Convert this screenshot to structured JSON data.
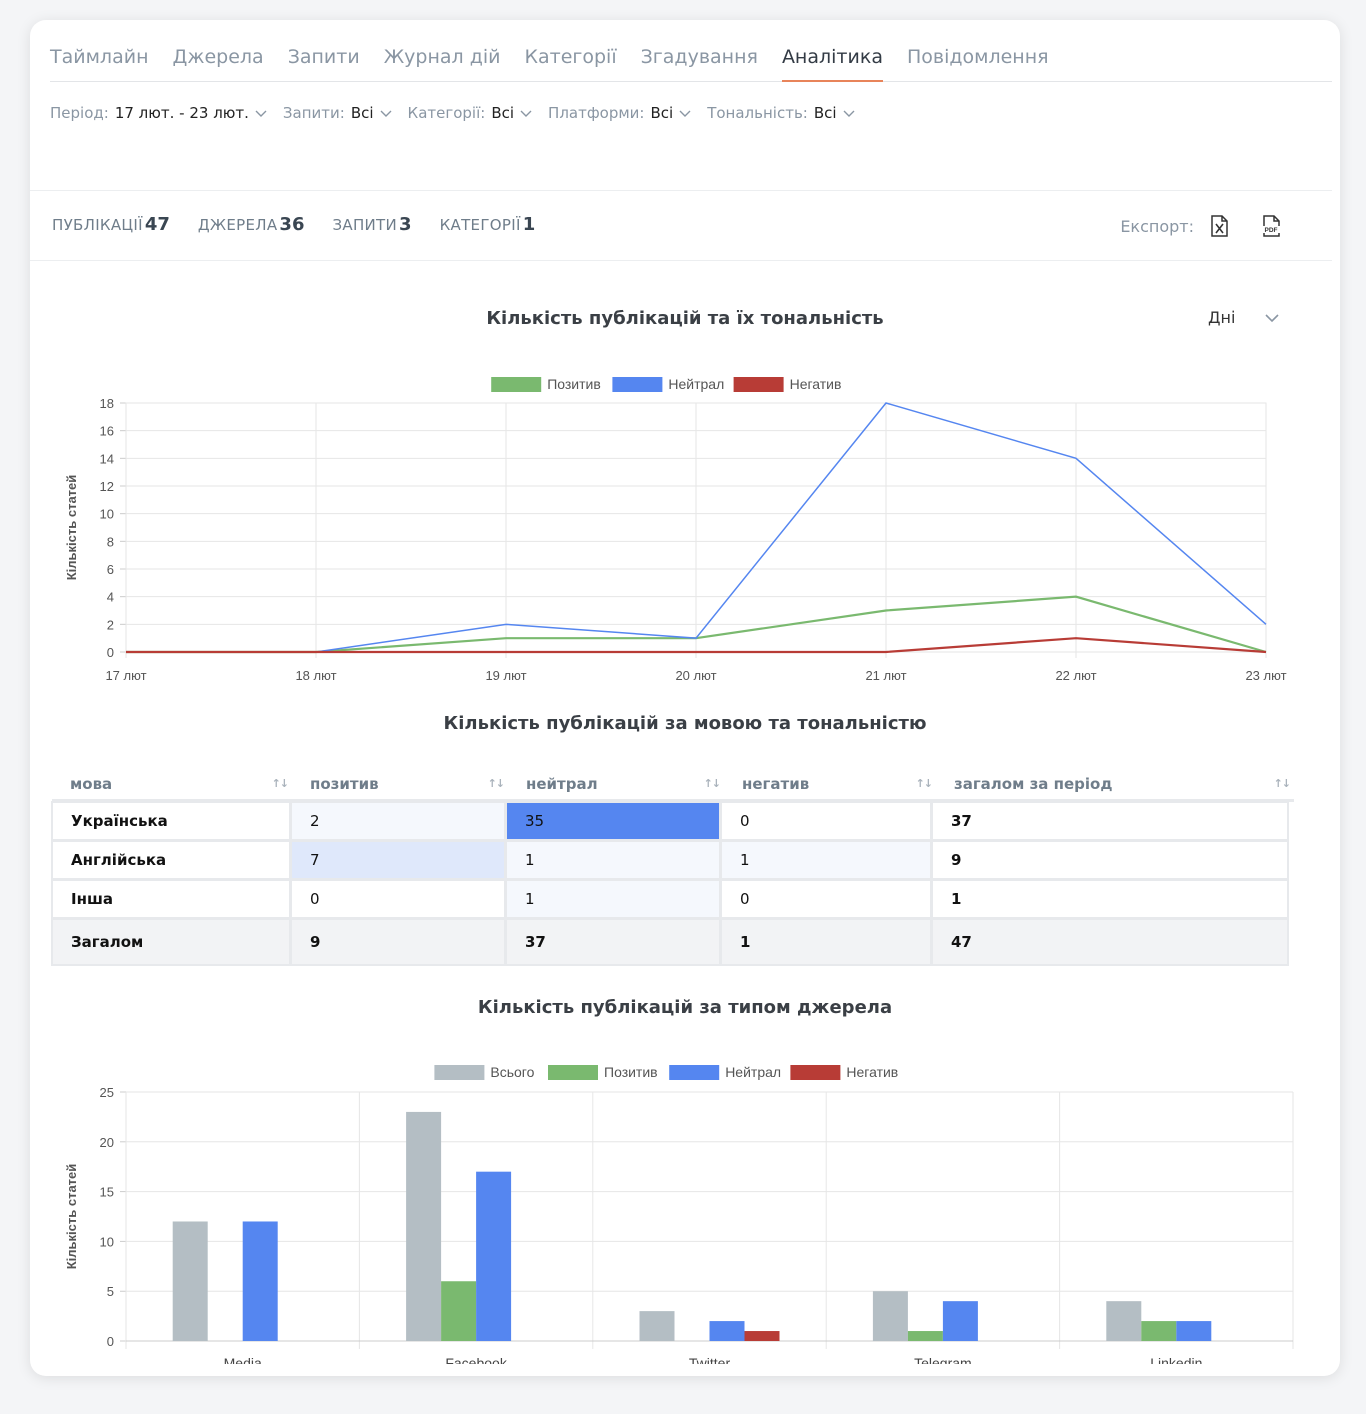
{
  "tabs": [
    "Таймлайн",
    "Джерела",
    "Запити",
    "Журнал дій",
    "Категорії",
    "Згадування",
    "Аналітика",
    "Повідомлення"
  ],
  "active_tab": 6,
  "filters": [
    {
      "label": "Період:",
      "value": "17 лют. - 23 лют."
    },
    {
      "label": "Запити:",
      "value": "Всі"
    },
    {
      "label": "Категорії:",
      "value": "Всі"
    },
    {
      "label": "Платформи:",
      "value": "Всі"
    },
    {
      "label": "Тональність:",
      "value": "Всі"
    }
  ],
  "stats": [
    {
      "label": "ПУБЛІКАЦІЇ",
      "value": "47"
    },
    {
      "label": "ДЖЕРЕЛА",
      "value": "36"
    },
    {
      "label": "ЗАПИТИ",
      "value": "3"
    },
    {
      "label": "КАТЕГОРІЇ",
      "value": "1"
    }
  ],
  "export": {
    "label": "Експорт:",
    "xls_icon": "excel-file-icon",
    "pdf_icon": "pdf-file-icon"
  },
  "period_select": {
    "value": "Дні"
  },
  "colors": {
    "positive": "#7ab96f",
    "neutral": "#5586f0",
    "negative": "#b83c36",
    "total": "#b4bec4",
    "accent": "#e8845a"
  },
  "table": {
    "title": "Кількість публікацій за мовою та тональністю",
    "headers": [
      "мова",
      "позитив",
      "нейтрал",
      "негатив",
      "загалом за період"
    ],
    "rows": [
      {
        "lang": "Українська",
        "pos": "2",
        "neu": "35",
        "neg": "0",
        "total": "37"
      },
      {
        "lang": "Англійська",
        "pos": "7",
        "neu": "1",
        "neg": "1",
        "total": "9"
      },
      {
        "lang": "Інша",
        "pos": "0",
        "neu": "1",
        "neg": "0",
        "total": "1"
      }
    ],
    "totals": {
      "lang": "Загалом",
      "pos": "9",
      "neu": "37",
      "neg": "1",
      "total": "47"
    }
  },
  "chart_data": [
    {
      "type": "line",
      "title": "Кількість публікацій та їх тональність",
      "ylabel": "Кількість статей",
      "xlabel": "",
      "categories": [
        "17 лют",
        "18 лют",
        "19 лют",
        "20 лют",
        "21 лют",
        "22 лют",
        "23 лют"
      ],
      "ylim": [
        0,
        18
      ],
      "yticks": [
        0,
        2,
        4,
        6,
        8,
        10,
        12,
        14,
        16,
        18
      ],
      "legend": "top-center",
      "grid": true,
      "series": [
        {
          "name": "Позитив",
          "color": "#7ab96f",
          "values": [
            0,
            0,
            1,
            1,
            3,
            4,
            0
          ]
        },
        {
          "name": "Нейтрал",
          "color": "#5586f0",
          "values": [
            0,
            0,
            2,
            1,
            18,
            14,
            2
          ]
        },
        {
          "name": "Негатив",
          "color": "#b83c36",
          "values": [
            0,
            0,
            0,
            0,
            0,
            1,
            0
          ]
        }
      ]
    },
    {
      "type": "bar",
      "title": "Кількість публікацій за типом джерела",
      "ylabel": "Кількість статей",
      "xlabel": "",
      "categories": [
        "Media",
        "Facebook",
        "Twitter",
        "Telegram",
        "Linkedin"
      ],
      "ylim": [
        0,
        25
      ],
      "yticks": [
        0,
        5,
        10,
        15,
        20,
        25
      ],
      "legend": "top-center",
      "grid": true,
      "series": [
        {
          "name": "Всього",
          "color": "#b4bec4",
          "values": [
            12,
            23,
            3,
            5,
            4
          ]
        },
        {
          "name": "Позитив",
          "color": "#7ab96f",
          "values": [
            0,
            6,
            0,
            1,
            2
          ]
        },
        {
          "name": "Нейтрал",
          "color": "#5586f0",
          "values": [
            12,
            17,
            2,
            4,
            2
          ]
        },
        {
          "name": "Негатив",
          "color": "#b83c36",
          "values": [
            0,
            0,
            1,
            0,
            0
          ]
        }
      ]
    }
  ]
}
